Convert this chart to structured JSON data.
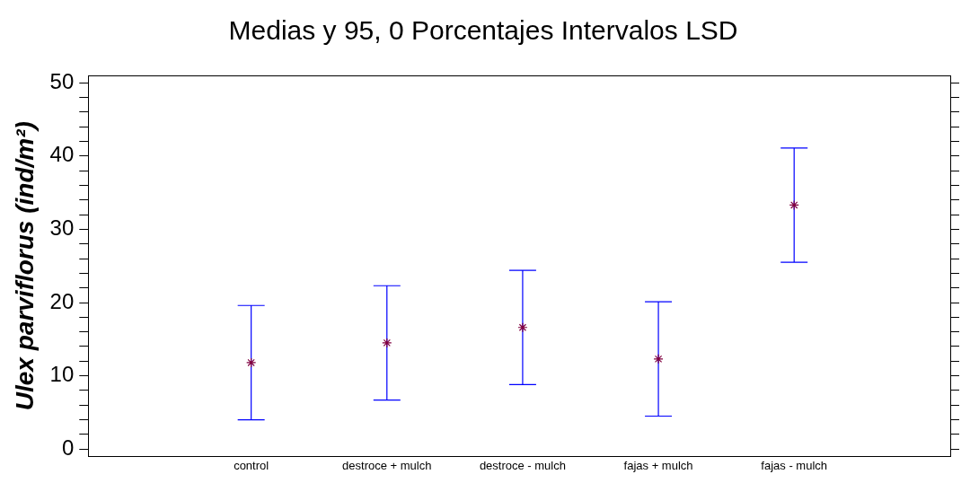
{
  "chart_data": {
    "type": "scatter",
    "title": "Medias y 95, 0 Porcentajes Intervalos LSD",
    "ylabel": "Ulex parviflorus (ind/m²)",
    "categories": [
      "control",
      "destroce + mulch",
      "destroce - mulch",
      "fajas + mulch",
      "fajas - mulch"
    ],
    "series": [
      {
        "color": "#800040",
        "values": [
          11.8,
          14.5,
          16.6,
          12.3,
          33.3
        ],
        "errors": [
          7.8,
          7.8,
          7.8,
          7.8,
          7.8
        ]
      }
    ],
    "ylim": [
      -1,
      51
    ],
    "yticks": [
      0,
      {
        "value": 2,
        "label": null
      },
      {
        "value": 4,
        "label": null
      },
      {
        "value": 6,
        "label": null
      },
      {
        "value": 8,
        "label": null
      },
      10,
      {
        "value": 12,
        "label": null
      },
      {
        "value": 14,
        "label": null
      },
      {
        "value": 16,
        "label": null
      },
      {
        "value": 18,
        "label": null
      },
      20,
      {
        "value": 22,
        "label": null
      },
      {
        "value": 24,
        "label": null
      },
      {
        "value": 26,
        "label": null
      },
      {
        "value": 28,
        "label": null
      },
      30,
      {
        "value": 32,
        "label": null
      },
      {
        "value": 34,
        "label": null
      },
      {
        "value": 36,
        "label": null
      },
      {
        "value": 38,
        "label": null
      },
      40,
      {
        "value": 42,
        "label": null
      },
      {
        "value": 44,
        "label": null
      },
      {
        "value": 46,
        "label": null
      },
      {
        "value": 48,
        "label": null
      },
      50
    ],
    "marker": "cross",
    "grid": false,
    "legend": false
  }
}
